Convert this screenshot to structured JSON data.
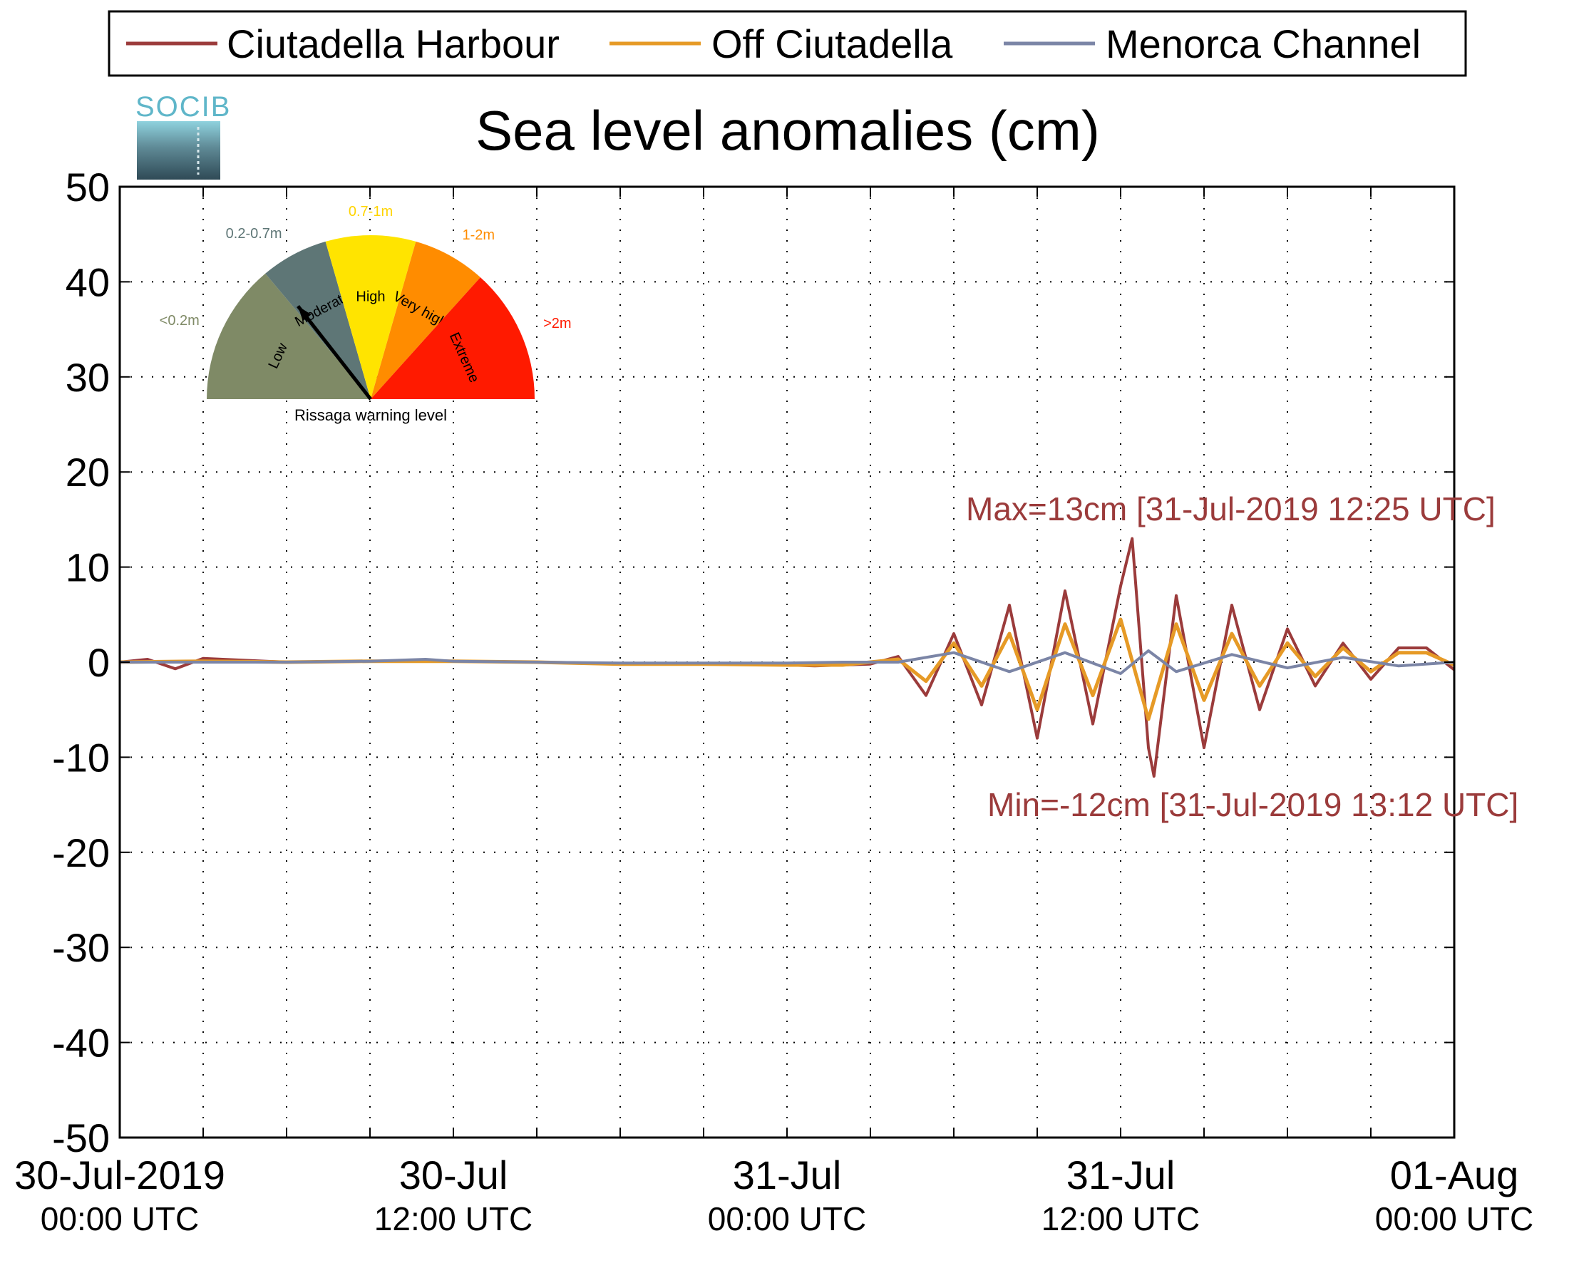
{
  "colors": {
    "ciutadella_harbour": "#9b3b3b",
    "off_ciutadella": "#e69a26",
    "menorca_channel": "#7b85a6",
    "annotation": "#9b3b3b"
  },
  "logo": {
    "text": "SOCIB"
  },
  "gauge": {
    "caption": "Rissaga warning level",
    "needle_level": "Moderate",
    "sectors": [
      {
        "name": "Low",
        "range": "<0.2m",
        "color": "#7f8a66"
      },
      {
        "name": "Moderate",
        "range": "0.2-0.7m",
        "color": "#5e7676"
      },
      {
        "name": "High",
        "range": "0.7-1m",
        "color": "#ffe400"
      },
      {
        "name": "Very high",
        "range": "1-2m",
        "color": "#ff8c00"
      },
      {
        "name": "Extreme",
        "range": ">2m",
        "color": "#ff1a00"
      }
    ]
  },
  "annotations": {
    "max": "Max=13cm [31-Jul-2019 12:25 UTC]",
    "min": "Min=-12cm [31-Jul-2019 13:12 UTC]"
  },
  "chart_data": {
    "type": "line",
    "title": "Sea level anomalies (cm)",
    "xlabel": "",
    "ylabel": "",
    "ylim": [
      -50,
      50
    ],
    "xlim_hours_from_start": [
      0,
      48
    ],
    "yticks": [
      "50",
      "40",
      "30",
      "20",
      "10",
      "0",
      "-10",
      "-20",
      "-30",
      "-40",
      "-50"
    ],
    "xticks": [
      {
        "date": "30-Jul-2019",
        "time": "00:00 UTC"
      },
      {
        "date": "30-Jul",
        "time": "12:00 UTC"
      },
      {
        "date": "31-Jul",
        "time": "00:00 UTC"
      },
      {
        "date": "31-Jul",
        "time": "12:00 UTC"
      },
      {
        "date": "01-Aug",
        "time": "00:00 UTC"
      }
    ],
    "grid": true,
    "legend_position": "top",
    "series": [
      {
        "name": "Ciutadella Harbour",
        "x": [
          "30-Jul 00:00",
          "30-Jul 01:00",
          "30-Jul 02:00",
          "30-Jul 03:00",
          "30-Jul 06:00",
          "30-Jul 09:00",
          "30-Jul 11:00",
          "30-Jul 12:00",
          "30-Jul 15:00",
          "30-Jul 18:00",
          "30-Jul 21:00",
          "31-Jul 00:00",
          "31-Jul 01:00",
          "31-Jul 02:00",
          "31-Jul 03:00",
          "31-Jul 04:00",
          "31-Jul 05:00",
          "31-Jul 06:00",
          "31-Jul 07:00",
          "31-Jul 08:00",
          "31-Jul 09:00",
          "31-Jul 10:00",
          "31-Jul 11:00",
          "31-Jul 12:00",
          "31-Jul 12:25",
          "31-Jul 13:00",
          "31-Jul 13:12",
          "31-Jul 14:00",
          "31-Jul 15:00",
          "31-Jul 16:00",
          "31-Jul 17:00",
          "31-Jul 18:00",
          "31-Jul 19:00",
          "31-Jul 20:00",
          "31-Jul 21:00",
          "31-Jul 22:00",
          "31-Jul 23:00",
          "01-Aug 00:00"
        ],
        "y": [
          0.0,
          0.3,
          -0.7,
          0.4,
          0.0,
          0.1,
          0.2,
          0.1,
          0.0,
          -0.2,
          -0.2,
          -0.3,
          -0.4,
          -0.3,
          -0.2,
          0.6,
          -3.5,
          3.0,
          -4.5,
          6.0,
          -8.0,
          7.5,
          -6.5,
          8.0,
          13.0,
          -9.0,
          -12.0,
          7.0,
          -9.0,
          6.0,
          -5.0,
          3.5,
          -2.5,
          2.0,
          -1.8,
          1.5,
          1.5,
          -0.8
        ]
      },
      {
        "name": "Off Ciutadella",
        "x": [
          "30-Jul 00:00",
          "30-Jul 03:00",
          "30-Jul 06:00",
          "30-Jul 09:00",
          "30-Jul 12:00",
          "30-Jul 15:00",
          "30-Jul 18:00",
          "30-Jul 21:00",
          "31-Jul 00:00",
          "31-Jul 02:00",
          "31-Jul 04:00",
          "31-Jul 05:00",
          "31-Jul 06:00",
          "31-Jul 07:00",
          "31-Jul 08:00",
          "31-Jul 09:00",
          "31-Jul 10:00",
          "31-Jul 11:00",
          "31-Jul 12:00",
          "31-Jul 13:00",
          "31-Jul 14:00",
          "31-Jul 15:00",
          "31-Jul 16:00",
          "31-Jul 17:00",
          "31-Jul 18:00",
          "31-Jul 19:00",
          "31-Jul 20:00",
          "31-Jul 21:00",
          "31-Jul 22:00",
          "31-Jul 23:00",
          "01-Aug 00:00"
        ],
        "y": [
          0.0,
          0.1,
          0.0,
          0.1,
          0.1,
          0.0,
          -0.2,
          -0.2,
          -0.3,
          -0.3,
          0.3,
          -2.0,
          2.0,
          -2.5,
          3.0,
          -5.0,
          4.0,
          -3.5,
          4.5,
          -6.0,
          4.0,
          -4.0,
          3.0,
          -2.5,
          2.0,
          -1.5,
          1.5,
          -1.0,
          1.0,
          1.0,
          -0.3
        ]
      },
      {
        "name": "Menorca Channel",
        "x": [
          "30-Jul 00:00",
          "30-Jul 03:00",
          "30-Jul 06:00",
          "30-Jul 09:00",
          "30-Jul 11:00",
          "30-Jul 12:00",
          "30-Jul 15:00",
          "30-Jul 18:00",
          "30-Jul 21:00",
          "31-Jul 00:00",
          "31-Jul 02:00",
          "31-Jul 04:00",
          "31-Jul 06:00",
          "31-Jul 08:00",
          "31-Jul 10:00",
          "31-Jul 12:00",
          "31-Jul 13:00",
          "31-Jul 14:00",
          "31-Jul 16:00",
          "31-Jul 18:00",
          "31-Jul 20:00",
          "31-Jul 22:00",
          "01-Aug 00:00"
        ],
        "y": [
          0.0,
          0.0,
          0.0,
          0.1,
          0.3,
          0.1,
          0.0,
          -0.1,
          -0.1,
          -0.1,
          0.0,
          0.0,
          1.0,
          -1.0,
          1.0,
          -1.2,
          1.2,
          -1.0,
          0.8,
          -0.6,
          0.5,
          -0.4,
          0.0
        ]
      }
    ]
  }
}
